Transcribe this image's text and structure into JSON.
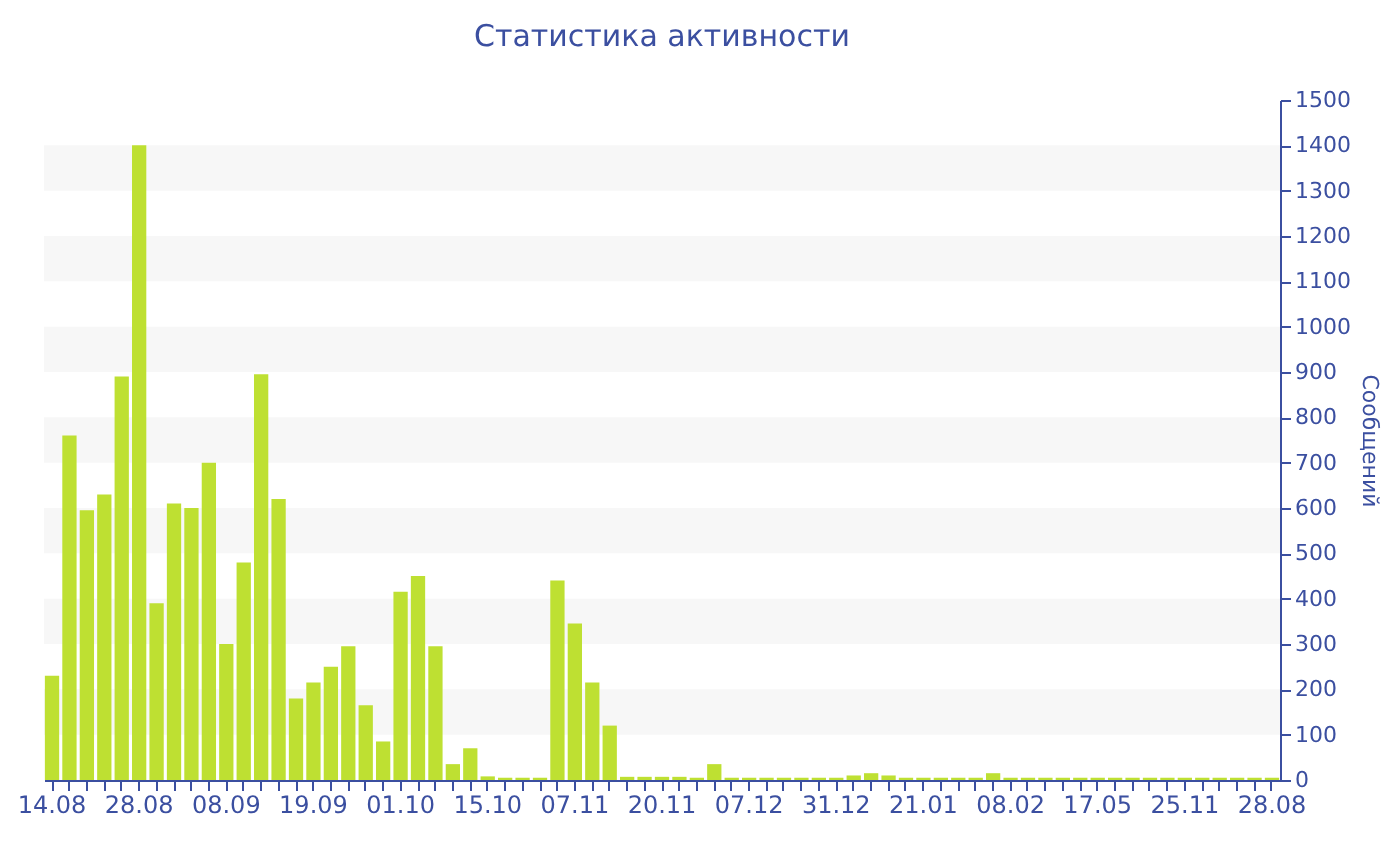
{
  "chart_data": {
    "type": "bar",
    "title": "Статистика активности",
    "ylabel": "Сообщений",
    "categories": [
      "14.08",
      null,
      null,
      null,
      null,
      "28.08",
      null,
      null,
      null,
      null,
      "08.09",
      null,
      null,
      null,
      null,
      "19.09",
      null,
      null,
      null,
      null,
      "01.10",
      null,
      null,
      null,
      null,
      "15.10",
      null,
      null,
      null,
      null,
      "07.11",
      null,
      null,
      null,
      null,
      "20.11",
      null,
      null,
      null,
      null,
      "07.12",
      null,
      null,
      null,
      null,
      "31.12",
      null,
      null,
      null,
      null,
      "21.01",
      null,
      null,
      null,
      null,
      "08.02",
      null,
      null,
      null,
      null,
      "17.05",
      null,
      null,
      null,
      null,
      "25.11",
      null,
      null,
      null,
      null,
      "28.08"
    ],
    "values": [
      230,
      760,
      595,
      630,
      890,
      1400,
      390,
      610,
      600,
      700,
      300,
      480,
      895,
      620,
      180,
      215,
      250,
      295,
      165,
      85,
      415,
      450,
      295,
      35,
      70,
      8,
      5,
      5,
      5,
      440,
      345,
      215,
      120,
      7,
      7,
      7,
      7,
      5,
      35,
      5,
      5,
      5,
      5,
      5,
      5,
      5,
      10,
      15,
      10,
      5,
      5,
      5,
      5,
      5,
      15,
      5,
      5,
      5,
      5,
      5,
      5,
      5,
      5,
      5,
      5,
      5,
      5,
      5,
      5,
      5,
      5
    ],
    "color": "#bee032",
    "ylim": [
      0,
      1500
    ],
    "yticks": [
      0,
      100,
      200,
      300,
      400,
      500,
      600,
      700,
      800,
      900,
      1000,
      1100,
      1200,
      1300,
      1400,
      1500
    ],
    "bands": [
      {
        "axis": "y",
        "from": 100,
        "to": 200,
        "color": "#f7f7f7"
      },
      {
        "axis": "y",
        "from": 300,
        "to": 400,
        "color": "#f7f7f7"
      },
      {
        "axis": "y",
        "from": 500,
        "to": 600,
        "color": "#f7f7f7"
      },
      {
        "axis": "y",
        "from": 700,
        "to": 800,
        "color": "#f7f7f7"
      },
      {
        "axis": "y",
        "from": 900,
        "to": 1000,
        "color": "#f7f7f7"
      },
      {
        "axis": "y",
        "from": 1100,
        "to": 1200,
        "color": "#f7f7f7"
      },
      {
        "axis": "y",
        "from": 1300,
        "to": 1400,
        "color": "#f7f7f7"
      }
    ]
  }
}
